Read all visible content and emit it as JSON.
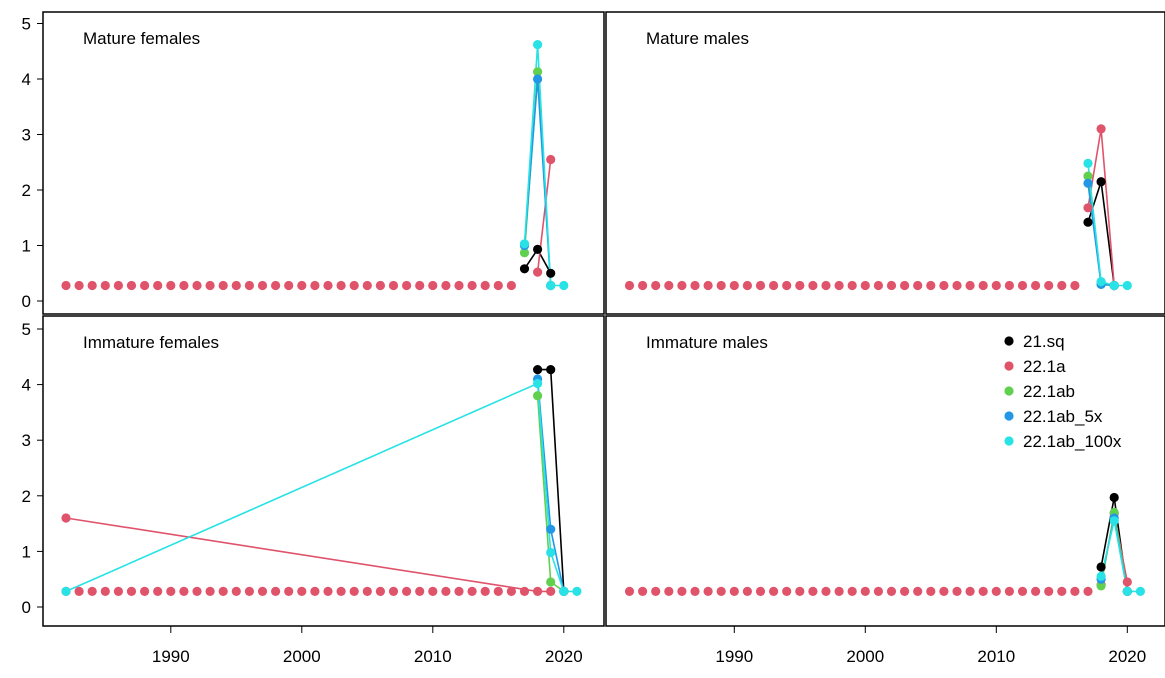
{
  "colors": {
    "21.sq": "#000000",
    "22.1a": "#DF536B",
    "22.1ab": "#61D04F",
    "22.1ab_5x": "#2297E6",
    "22.1ab_100x": "#28E2E5"
  },
  "chart_data": {
    "type": "line",
    "layout": "2x2 panels, shared x axis per column, shared y axis per row",
    "xlim": [
      1982,
      2021
    ],
    "ylim": [
      0,
      5
    ],
    "x_ticks": [
      "1990",
      "2000",
      "2010",
      "2020"
    ],
    "y_ticks": [
      "0",
      "1",
      "2",
      "3",
      "4",
      "5"
    ],
    "baseline_value": 0.28,
    "legend": {
      "placement": "top-right of Immature males panel",
      "entries": [
        "21.sq",
        "22.1a",
        "22.1ab",
        "22.1ab_5x",
        "22.1ab_100x"
      ]
    },
    "panels": [
      {
        "title": "Mature females",
        "series": [
          {
            "name": "21.sq",
            "values": [
              [
                2017,
                0.58
              ],
              [
                2018,
                0.93
              ],
              [
                2019,
                0.5
              ]
            ]
          },
          {
            "name": "22.1a",
            "values": [
              [
                2018,
                0.52
              ],
              [
                2019,
                2.55
              ]
            ]
          },
          {
            "name": "22.1ab",
            "values": [
              [
                2017,
                0.87
              ],
              [
                2018,
                4.13
              ],
              [
                2019,
                0.28
              ]
            ]
          },
          {
            "name": "22.1ab_5x",
            "values": [
              [
                2017,
                1.0
              ],
              [
                2018,
                4.0
              ],
              [
                2019,
                0.28
              ]
            ]
          },
          {
            "name": "22.1ab_100x",
            "values": [
              [
                2017,
                1.03
              ],
              [
                2018,
                4.62
              ],
              [
                2019,
                0.28
              ],
              [
                2020,
                0.28
              ]
            ]
          }
        ]
      },
      {
        "title": "Mature males",
        "series": [
          {
            "name": "21.sq",
            "values": [
              [
                2017,
                1.42
              ],
              [
                2018,
                2.15
              ],
              [
                2019,
                0.28
              ]
            ]
          },
          {
            "name": "22.1a",
            "values": [
              [
                2017,
                1.68
              ],
              [
                2018,
                3.1
              ],
              [
                2019,
                0.28
              ]
            ]
          },
          {
            "name": "22.1ab",
            "values": [
              [
                2017,
                2.25
              ],
              [
                2018,
                0.3
              ],
              [
                2019,
                0.28
              ]
            ]
          },
          {
            "name": "22.1ab_5x",
            "values": [
              [
                2017,
                2.12
              ],
              [
                2018,
                0.3
              ],
              [
                2019,
                0.28
              ]
            ]
          },
          {
            "name": "22.1ab_100x",
            "values": [
              [
                2017,
                2.48
              ],
              [
                2018,
                0.35
              ],
              [
                2019,
                0.28
              ],
              [
                2020,
                0.28
              ]
            ]
          }
        ]
      },
      {
        "title": "Immature females",
        "series": [
          {
            "name": "21.sq",
            "values": [
              [
                2018,
                4.27
              ],
              [
                2019,
                4.27
              ],
              [
                2020,
                0.28
              ]
            ]
          },
          {
            "name": "22.1a",
            "values": [
              [
                1982,
                1.6
              ],
              [
                2018,
                0.28
              ],
              [
                2019,
                0.28
              ]
            ]
          },
          {
            "name": "22.1ab",
            "values": [
              [
                2018,
                3.8
              ],
              [
                2019,
                0.45
              ],
              [
                2020,
                0.28
              ]
            ]
          },
          {
            "name": "22.1ab_5x",
            "values": [
              [
                2018,
                4.1
              ],
              [
                2019,
                1.4
              ],
              [
                2020,
                0.28
              ]
            ]
          },
          {
            "name": "22.1ab_100x",
            "values": [
              [
                1982,
                0.28
              ],
              [
                2018,
                4.02
              ],
              [
                2019,
                0.98
              ],
              [
                2020,
                0.28
              ],
              [
                2021,
                0.28
              ]
            ]
          }
        ]
      },
      {
        "title": "Immature males",
        "series": [
          {
            "name": "21.sq",
            "values": [
              [
                2018,
                0.72
              ],
              [
                2019,
                1.97
              ],
              [
                2020,
                0.28
              ]
            ]
          },
          {
            "name": "22.1a",
            "values": [
              [
                2018,
                0.4
              ],
              [
                2019,
                1.68
              ],
              [
                2020,
                0.45
              ]
            ]
          },
          {
            "name": "22.1ab",
            "values": [
              [
                2018,
                0.38
              ],
              [
                2019,
                1.7
              ],
              [
                2020,
                0.28
              ]
            ]
          },
          {
            "name": "22.1ab_5x",
            "values": [
              [
                2018,
                0.5
              ],
              [
                2019,
                1.6
              ],
              [
                2020,
                0.28
              ]
            ]
          },
          {
            "name": "22.1ab_100x",
            "values": [
              [
                2018,
                0.55
              ],
              [
                2019,
                1.55
              ],
              [
                2020,
                0.28
              ],
              [
                2021,
                0.28
              ]
            ]
          }
        ]
      }
    ]
  }
}
